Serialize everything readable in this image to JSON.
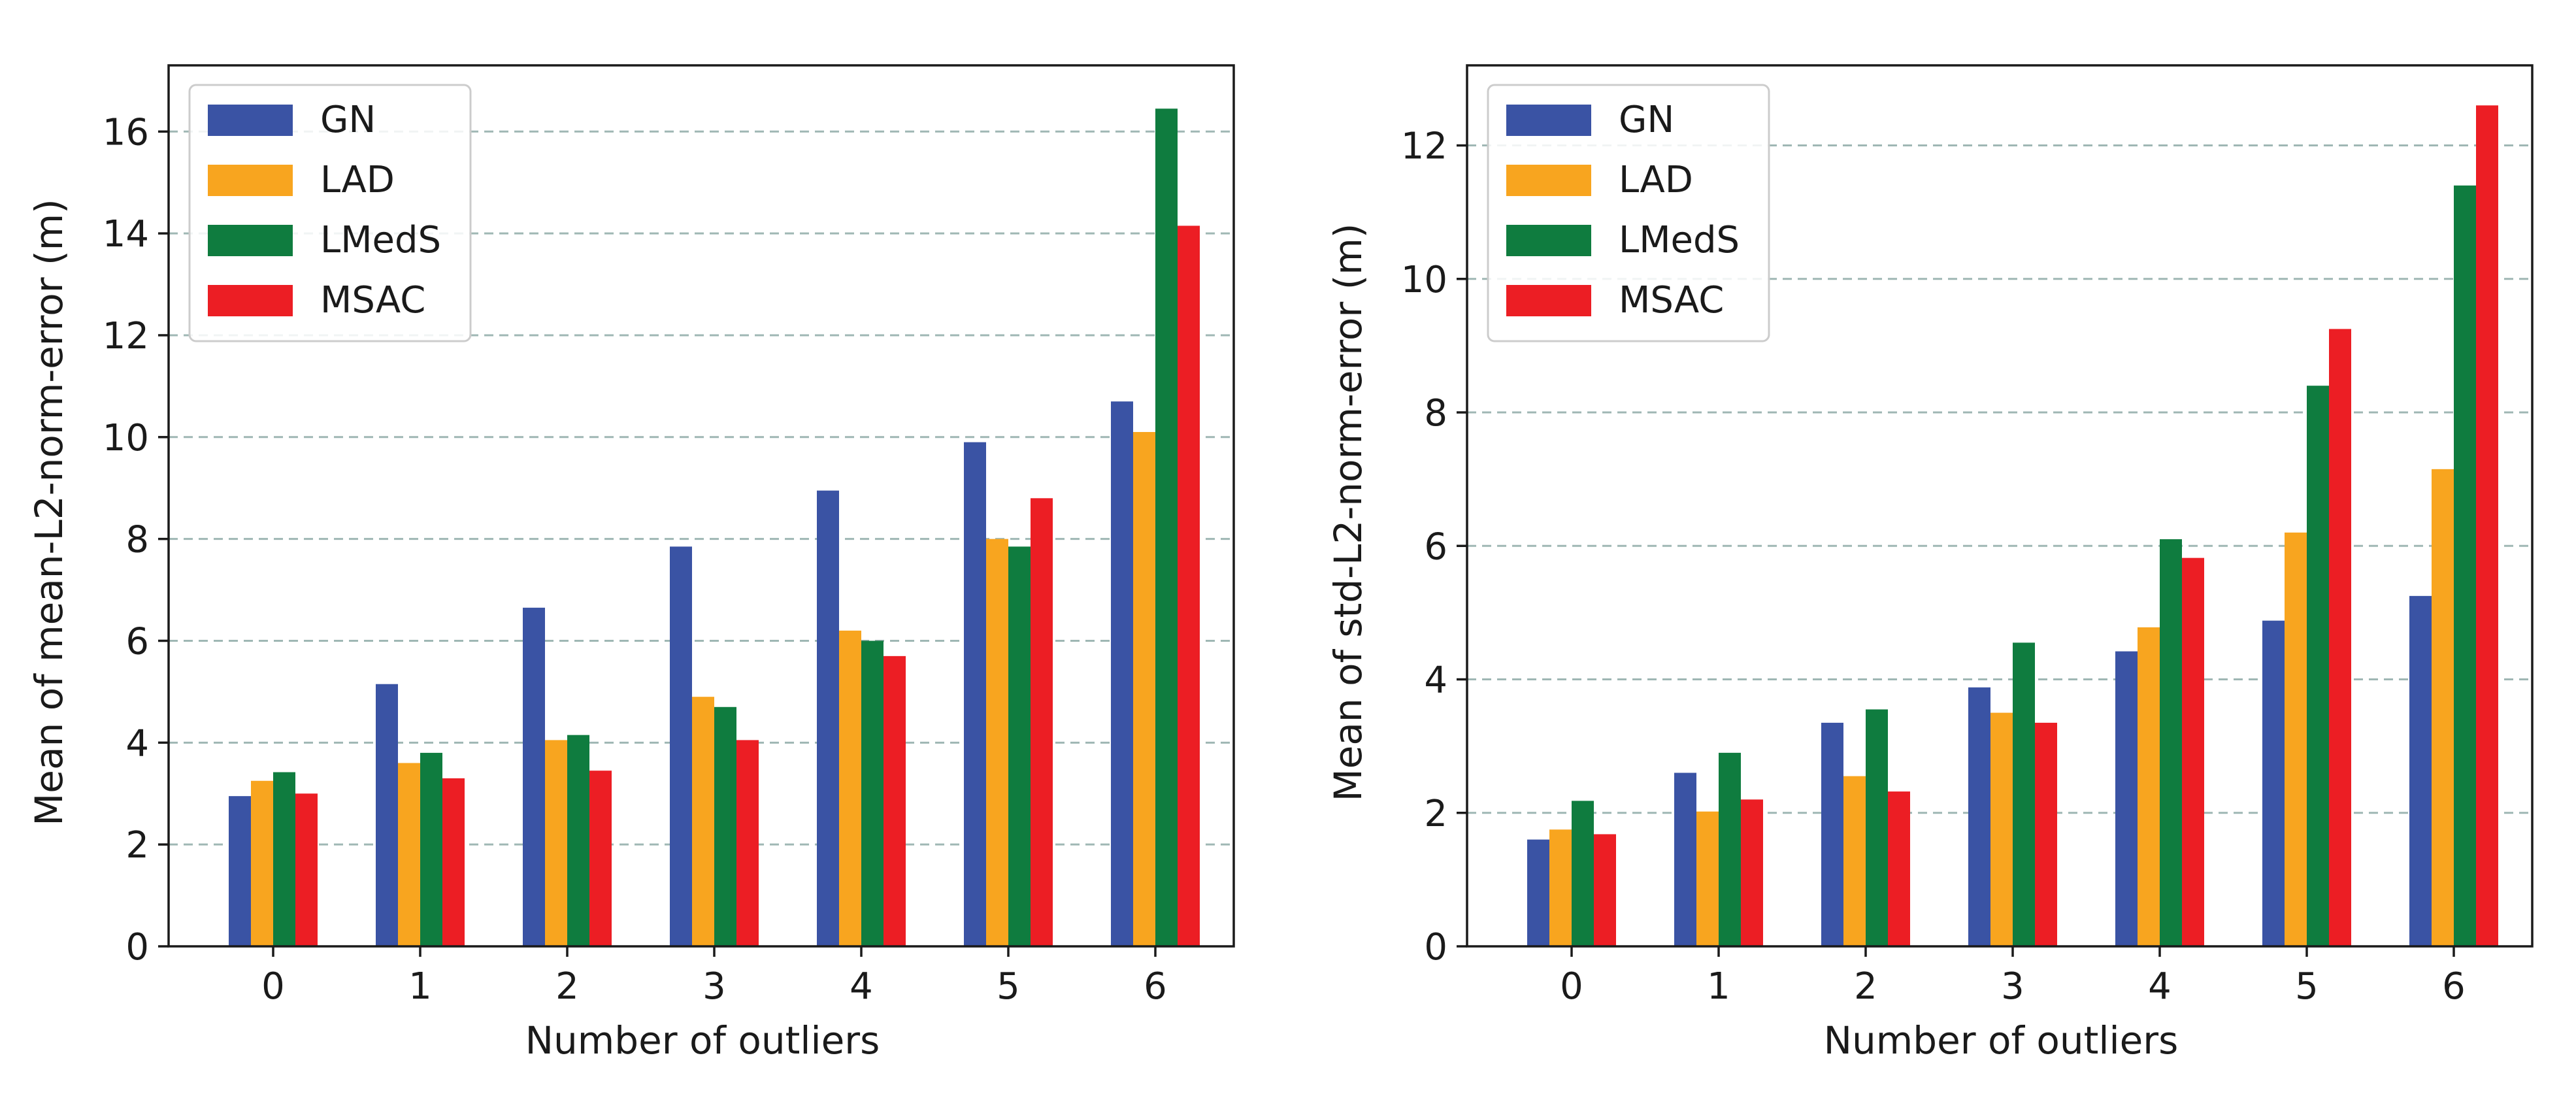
{
  "colors": {
    "GN": "#3a53a4",
    "LAD": "#f8a51f",
    "LMedS": "#0f7c3f",
    "MSAC": "#ec1e24",
    "grid": "#9fb7b4",
    "axis": "#1a1a1a"
  },
  "chart_data": [
    {
      "type": "bar",
      "title": "",
      "xlabel": "Number of outliers",
      "ylabel": "Mean of mean-L2-norm-error (m)",
      "categories": [
        "0",
        "1",
        "2",
        "3",
        "4",
        "5",
        "6"
      ],
      "ylim": [
        0,
        17.3
      ],
      "yticks": [
        0,
        2,
        4,
        6,
        8,
        10,
        12,
        14,
        16
      ],
      "ytick_labels": [
        "0",
        "2",
        "4",
        "6",
        "8",
        "10",
        "12",
        "14",
        "16"
      ],
      "grid": "horizontal dashed",
      "legend_position": "top-left",
      "series": [
        {
          "name": "GN",
          "values": [
            2.95,
            5.15,
            6.65,
            7.85,
            8.95,
            9.9,
            10.7
          ]
        },
        {
          "name": "LAD",
          "values": [
            3.25,
            3.6,
            4.05,
            4.9,
            6.2,
            8.0,
            10.1
          ]
        },
        {
          "name": "LMedS",
          "values": [
            3.42,
            3.8,
            4.15,
            4.7,
            6.0,
            7.85,
            16.45
          ]
        },
        {
          "name": "MSAC",
          "values": [
            3.0,
            3.3,
            3.45,
            4.05,
            5.7,
            8.8,
            14.15
          ]
        }
      ]
    },
    {
      "type": "bar",
      "title": "",
      "xlabel": "Number of outliers",
      "ylabel": "Mean of std-L2-norm-error (m)",
      "categories": [
        "0",
        "1",
        "2",
        "3",
        "4",
        "5",
        "6"
      ],
      "ylim": [
        0,
        13.2
      ],
      "yticks": [
        0,
        2,
        4,
        6,
        8,
        10,
        12
      ],
      "ytick_labels": [
        "0",
        "2",
        "4",
        "6",
        "8",
        "10",
        "12"
      ],
      "grid": "horizontal dashed",
      "legend_position": "top-left",
      "series": [
        {
          "name": "GN",
          "values": [
            1.6,
            2.6,
            3.35,
            3.88,
            4.42,
            4.88,
            5.25
          ]
        },
        {
          "name": "LAD",
          "values": [
            1.75,
            2.02,
            2.55,
            3.5,
            4.78,
            6.2,
            7.15
          ]
        },
        {
          "name": "LMedS",
          "values": [
            2.18,
            2.9,
            3.55,
            4.55,
            6.1,
            8.4,
            11.4
          ]
        },
        {
          "name": "MSAC",
          "values": [
            1.68,
            2.2,
            2.32,
            3.35,
            5.82,
            9.25,
            12.6
          ]
        }
      ]
    }
  ]
}
